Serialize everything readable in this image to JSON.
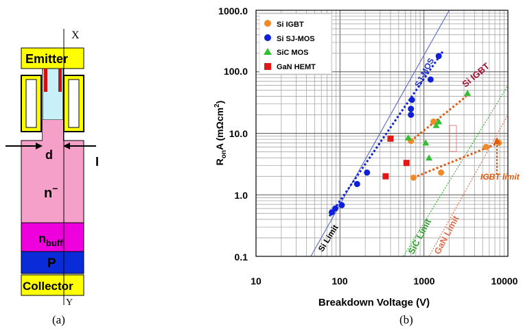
{
  "device": {
    "axis_top_label": "X",
    "axis_bottom_label": "Y",
    "emitter_label": "Emitter",
    "d_label": "d",
    "n_minus_label": "n",
    "n_minus_sup": "−",
    "n_buff_label": "n",
    "n_buff_sub": "buff",
    "p_label": "P",
    "collector_label": "Collector",
    "right_cut_label": "I",
    "caption": "(a)",
    "colors": {
      "emitter": "#ffff00",
      "trench_fill": "#ffff00",
      "channel": "#c8f0f8",
      "gate": "#cc1111",
      "n_drift": "#f4a0c8",
      "n_buff": "#ee00dd",
      "p_layer": "#0a2bd8",
      "collector": "#ffff00"
    }
  },
  "chart_caption": "(b)",
  "chart_data": {
    "type": "scatter",
    "xlabel": "Breakdown Voltage (V)",
    "ylabel_main": "R",
    "ylabel_sub": "on",
    "ylabel_rest": "A (mΩcm",
    "ylabel_sup": "2",
    "ylabel_close": ")",
    "x_scale": "log",
    "y_scale": "log",
    "xlim": [
      10,
      10000
    ],
    "ylim": [
      0.1,
      1000
    ],
    "x_ticks": [
      "10",
      "100",
      "1000",
      "10000"
    ],
    "y_ticks": [
      "1000.0",
      "100.0",
      "10.0",
      "1.0",
      "0.1"
    ],
    "grid": true,
    "legend_position": "top-left",
    "series": [
      {
        "name": "Si IGBT",
        "marker": "circle",
        "color": "#f08a28",
        "points": [
          [
            700,
            7.5
          ],
          [
            750,
            1.9
          ],
          [
            1300,
            15.5
          ],
          [
            1600,
            2.3
          ],
          [
            5500,
            6.0
          ],
          [
            7800,
            7.0
          ]
        ]
      },
      {
        "name": "Si SJ-MOS",
        "marker": "circle",
        "color": "#1020d8",
        "points": [
          [
            80,
            0.52
          ],
          [
            88,
            0.6
          ],
          [
            105,
            0.68
          ],
          [
            160,
            1.5
          ],
          [
            210,
            2.3
          ],
          [
            700,
            20
          ],
          [
            700,
            25
          ],
          [
            720,
            35
          ],
          [
            1200,
            75
          ],
          [
            1500,
            180
          ]
        ]
      },
      {
        "name": "SiC MOS",
        "marker": "triangle",
        "color": "#30c030",
        "points": [
          [
            650,
            8.5
          ],
          [
            1050,
            7.0
          ],
          [
            1150,
            4.0
          ],
          [
            1400,
            13.5
          ],
          [
            1500,
            15.5
          ],
          [
            3300,
            45
          ]
        ]
      },
      {
        "name": "GaN HEMT",
        "marker": "square",
        "color": "#e01818",
        "points": [
          [
            350,
            2.0
          ],
          [
            400,
            8.2
          ],
          [
            620,
            3.3
          ]
        ]
      }
    ],
    "limit_lines": [
      {
        "label": "Si Limit",
        "color": "#6070c8",
        "from": [
          45,
          0.1
        ],
        "to": [
          2000,
          1000
        ]
      },
      {
        "label": "SiC Limit",
        "color": "#30b030",
        "from": [
          570,
          0.1
        ],
        "to": [
          10000,
          60
        ]
      },
      {
        "label": "GaN Limit",
        "color": "#e07050",
        "from": [
          1150,
          0.1
        ],
        "to": [
          10000,
          20
        ]
      }
    ],
    "trend_lines": [
      {
        "label": "SJ-MOS",
        "color": "#1020d8",
        "from": [
          75,
          0.45
        ],
        "to": [
          1700,
          220
        ]
      },
      {
        "label": "Si IGBT",
        "color": "#e05a10",
        "from": [
          700,
          7.5
        ],
        "to": [
          3200,
          40
        ]
      },
      {
        "label": "IGBT limit",
        "color": "#e05a10",
        "from": [
          750,
          1.9
        ],
        "to": [
          7800,
          7.0
        ]
      }
    ]
  }
}
